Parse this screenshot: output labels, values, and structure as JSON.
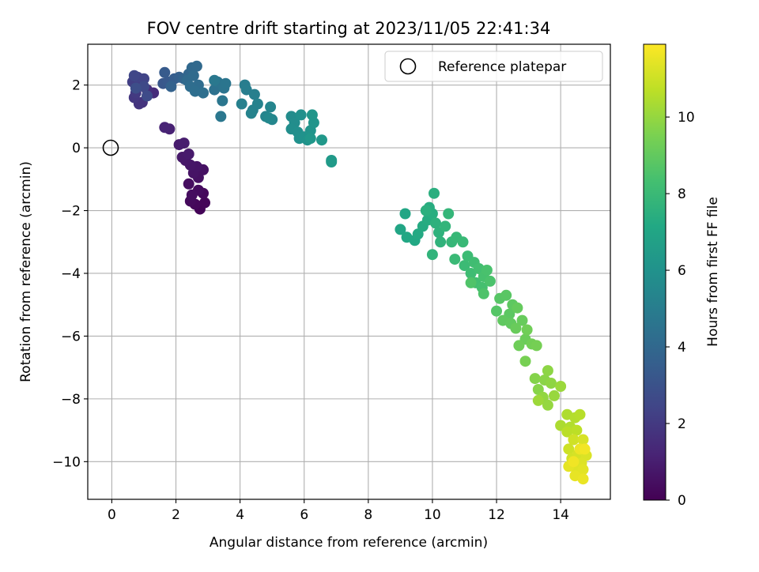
{
  "chart_data": {
    "type": "scatter",
    "title": "FOV centre drift starting at 2023/11/05 22:41:34",
    "xlabel": "Angular distance from reference (arcmin)",
    "ylabel": "Rotation from reference (arcmin)",
    "xlim": [
      -0.75,
      15.55
    ],
    "ylim": [
      -11.2,
      3.3
    ],
    "xticks": [
      0,
      2,
      4,
      6,
      8,
      10,
      12,
      14
    ],
    "yticks": [
      -10,
      -8,
      -6,
      -4,
      -2,
      0,
      2
    ],
    "xtick_labels": [
      "0",
      "2",
      "4",
      "6",
      "8",
      "10",
      "12",
      "14"
    ],
    "ytick_labels": [
      "−10",
      "−8",
      "−6",
      "−4",
      "−2",
      "0",
      "2"
    ],
    "grid": true,
    "legend": {
      "position": "top-right",
      "entries": [
        {
          "label": "Reference platepar",
          "marker": "open-circle",
          "x": 0,
          "y": 0
        }
      ]
    },
    "colorbar": {
      "label": "Hours from first FF file",
      "colormap": "viridis",
      "range": [
        0,
        11.9
      ],
      "ticks": [
        0,
        2,
        4,
        6,
        8,
        10
      ],
      "tick_labels": [
        "0",
        "2",
        "4",
        "6",
        "8",
        "10"
      ]
    },
    "series": [
      {
        "points": [
          {
            "x": 2.75,
            "y": -1.95,
            "c": 0.1
          },
          {
            "x": 2.9,
            "y": -1.75,
            "c": 0.15
          },
          {
            "x": 2.6,
            "y": -1.8,
            "c": 0.2
          },
          {
            "x": 2.85,
            "y": -1.45,
            "c": 0.25
          },
          {
            "x": 2.45,
            "y": -1.7,
            "c": 0.3
          },
          {
            "x": 2.7,
            "y": -1.35,
            "c": 0.35
          },
          {
            "x": 2.5,
            "y": -1.5,
            "c": 0.4
          },
          {
            "x": 2.4,
            "y": -1.15,
            "c": 0.45
          },
          {
            "x": 2.7,
            "y": -0.95,
            "c": 0.5
          },
          {
            "x": 2.85,
            "y": -0.7,
            "c": 0.55
          },
          {
            "x": 2.55,
            "y": -0.8,
            "c": 0.6
          },
          {
            "x": 2.65,
            "y": -0.6,
            "c": 0.65
          },
          {
            "x": 2.45,
            "y": -0.55,
            "c": 0.7
          },
          {
            "x": 2.3,
            "y": -0.4,
            "c": 0.75
          },
          {
            "x": 2.2,
            "y": -0.3,
            "c": 0.8
          },
          {
            "x": 2.4,
            "y": -0.2,
            "c": 0.85
          },
          {
            "x": 2.1,
            "y": 0.1,
            "c": 0.9
          },
          {
            "x": 2.25,
            "y": 0.15,
            "c": 0.95
          },
          {
            "x": 1.8,
            "y": 0.6,
            "c": 1.1
          },
          {
            "x": 1.65,
            "y": 0.65,
            "c": 1.2
          },
          {
            "x": 1.3,
            "y": 1.75,
            "c": 1.5
          },
          {
            "x": 1.1,
            "y": 1.85,
            "c": 1.6
          },
          {
            "x": 0.95,
            "y": 1.45,
            "c": 1.7
          },
          {
            "x": 0.85,
            "y": 1.4,
            "c": 1.8
          },
          {
            "x": 0.7,
            "y": 1.6,
            "c": 1.9
          },
          {
            "x": 0.75,
            "y": 1.75,
            "c": 2.0
          },
          {
            "x": 0.9,
            "y": 2.0,
            "c": 2.1
          },
          {
            "x": 0.65,
            "y": 2.1,
            "c": 2.2
          },
          {
            "x": 0.8,
            "y": 2.25,
            "c": 2.3
          },
          {
            "x": 1.0,
            "y": 2.2,
            "c": 2.4
          },
          {
            "x": 0.7,
            "y": 2.3,
            "c": 2.5
          },
          {
            "x": 1.0,
            "y": 1.95,
            "c": 2.6
          },
          {
            "x": 1.1,
            "y": 1.65,
            "c": 2.7
          },
          {
            "x": 0.75,
            "y": 1.9,
            "c": 2.8
          },
          {
            "x": 1.6,
            "y": 2.05,
            "c": 3.2
          },
          {
            "x": 1.75,
            "y": 2.1,
            "c": 3.3
          },
          {
            "x": 1.65,
            "y": 2.4,
            "c": 3.4
          },
          {
            "x": 1.95,
            "y": 2.2,
            "c": 3.5
          },
          {
            "x": 2.1,
            "y": 2.25,
            "c": 3.6
          },
          {
            "x": 1.85,
            "y": 1.95,
            "c": 3.7
          },
          {
            "x": 2.25,
            "y": 2.2,
            "c": 3.8
          },
          {
            "x": 2.4,
            "y": 2.35,
            "c": 3.9
          },
          {
            "x": 2.5,
            "y": 2.55,
            "c": 4.0
          },
          {
            "x": 2.65,
            "y": 2.6,
            "c": 4.05
          },
          {
            "x": 2.35,
            "y": 2.15,
            "c": 4.1
          },
          {
            "x": 2.55,
            "y": 2.3,
            "c": 4.15
          },
          {
            "x": 2.7,
            "y": 2.0,
            "c": 4.2
          },
          {
            "x": 2.45,
            "y": 1.95,
            "c": 4.25
          },
          {
            "x": 2.6,
            "y": 1.8,
            "c": 4.3
          },
          {
            "x": 2.85,
            "y": 1.75,
            "c": 4.35
          },
          {
            "x": 3.2,
            "y": 1.85,
            "c": 4.45
          },
          {
            "x": 3.3,
            "y": 2.1,
            "c": 4.5
          },
          {
            "x": 3.5,
            "y": 1.9,
            "c": 4.55
          },
          {
            "x": 3.55,
            "y": 2.05,
            "c": 4.6
          },
          {
            "x": 3.45,
            "y": 1.5,
            "c": 4.65
          },
          {
            "x": 3.4,
            "y": 1.0,
            "c": 4.7
          },
          {
            "x": 3.2,
            "y": 2.15,
            "c": 4.75
          },
          {
            "x": 4.15,
            "y": 2.0,
            "c": 5.0
          },
          {
            "x": 4.2,
            "y": 1.85,
            "c": 5.05
          },
          {
            "x": 4.45,
            "y": 1.7,
            "c": 5.1
          },
          {
            "x": 4.05,
            "y": 1.4,
            "c": 5.15
          },
          {
            "x": 4.4,
            "y": 1.2,
            "c": 5.2
          },
          {
            "x": 4.55,
            "y": 1.4,
            "c": 5.25
          },
          {
            "x": 4.35,
            "y": 1.1,
            "c": 5.3
          },
          {
            "x": 4.8,
            "y": 1.0,
            "c": 5.35
          },
          {
            "x": 4.95,
            "y": 1.3,
            "c": 5.4
          },
          {
            "x": 5.0,
            "y": 0.9,
            "c": 5.45
          },
          {
            "x": 4.9,
            "y": 0.95,
            "c": 5.5
          },
          {
            "x": 5.6,
            "y": 1.0,
            "c": 5.7
          },
          {
            "x": 5.7,
            "y": 0.8,
            "c": 5.75
          },
          {
            "x": 5.6,
            "y": 0.6,
            "c": 5.8
          },
          {
            "x": 5.8,
            "y": 0.5,
            "c": 5.85
          },
          {
            "x": 5.9,
            "y": 1.05,
            "c": 5.9
          },
          {
            "x": 5.85,
            "y": 0.3,
            "c": 5.95
          },
          {
            "x": 6.0,
            "y": 0.35,
            "c": 6.0
          },
          {
            "x": 6.1,
            "y": 0.25,
            "c": 6.05
          },
          {
            "x": 6.2,
            "y": 0.55,
            "c": 6.1
          },
          {
            "x": 6.3,
            "y": 0.8,
            "c": 6.15
          },
          {
            "x": 6.25,
            "y": 1.05,
            "c": 6.2
          },
          {
            "x": 6.2,
            "y": 0.3,
            "c": 6.25
          },
          {
            "x": 6.55,
            "y": 0.25,
            "c": 6.3
          },
          {
            "x": 6.85,
            "y": -0.4,
            "c": 6.35
          },
          {
            "x": 6.85,
            "y": -0.45,
            "c": 6.4
          },
          {
            "x": 9.0,
            "y": -2.6,
            "c": 7.0
          },
          {
            "x": 9.15,
            "y": -2.1,
            "c": 7.05
          },
          {
            "x": 9.2,
            "y": -2.85,
            "c": 7.1
          },
          {
            "x": 9.45,
            "y": -2.95,
            "c": 7.15
          },
          {
            "x": 9.55,
            "y": -2.75,
            "c": 7.2
          },
          {
            "x": 9.7,
            "y": -2.5,
            "c": 7.25
          },
          {
            "x": 9.85,
            "y": -2.3,
            "c": 7.3
          },
          {
            "x": 9.9,
            "y": -1.9,
            "c": 7.35
          },
          {
            "x": 10.0,
            "y": -2.1,
            "c": 7.4
          },
          {
            "x": 10.05,
            "y": -1.45,
            "c": 7.45
          },
          {
            "x": 9.8,
            "y": -2.0,
            "c": 7.5
          },
          {
            "x": 10.1,
            "y": -2.4,
            "c": 7.55
          },
          {
            "x": 10.2,
            "y": -2.7,
            "c": 7.6
          },
          {
            "x": 10.25,
            "y": -3.0,
            "c": 7.65
          },
          {
            "x": 10.0,
            "y": -3.4,
            "c": 7.7
          },
          {
            "x": 10.4,
            "y": -2.5,
            "c": 7.75
          },
          {
            "x": 10.5,
            "y": -2.1,
            "c": 7.8
          },
          {
            "x": 10.6,
            "y": -3.0,
            "c": 7.85
          },
          {
            "x": 10.75,
            "y": -2.85,
            "c": 7.9
          },
          {
            "x": 10.95,
            "y": -3.0,
            "c": 7.95
          },
          {
            "x": 10.7,
            "y": -3.55,
            "c": 8.0
          },
          {
            "x": 11.0,
            "y": -3.75,
            "c": 8.05
          },
          {
            "x": 11.1,
            "y": -3.45,
            "c": 8.1
          },
          {
            "x": 11.2,
            "y": -4.0,
            "c": 8.15
          },
          {
            "x": 11.3,
            "y": -3.65,
            "c": 8.2
          },
          {
            "x": 11.35,
            "y": -4.3,
            "c": 8.25
          },
          {
            "x": 11.45,
            "y": -3.85,
            "c": 8.3
          },
          {
            "x": 11.55,
            "y": -4.45,
            "c": 8.35
          },
          {
            "x": 11.6,
            "y": -4.1,
            "c": 8.4
          },
          {
            "x": 11.7,
            "y": -3.9,
            "c": 8.45
          },
          {
            "x": 11.8,
            "y": -4.25,
            "c": 8.5
          },
          {
            "x": 11.6,
            "y": -4.65,
            "c": 8.55
          },
          {
            "x": 11.2,
            "y": -4.3,
            "c": 8.6
          },
          {
            "x": 12.0,
            "y": -5.2,
            "c": 8.7
          },
          {
            "x": 12.1,
            "y": -4.8,
            "c": 8.75
          },
          {
            "x": 12.3,
            "y": -4.7,
            "c": 8.8
          },
          {
            "x": 12.4,
            "y": -5.3,
            "c": 8.85
          },
          {
            "x": 12.5,
            "y": -5.0,
            "c": 8.9
          },
          {
            "x": 12.2,
            "y": -5.5,
            "c": 8.95
          },
          {
            "x": 12.45,
            "y": -5.6,
            "c": 9.0
          },
          {
            "x": 12.65,
            "y": -5.1,
            "c": 9.05
          },
          {
            "x": 12.8,
            "y": -5.5,
            "c": 9.1
          },
          {
            "x": 12.6,
            "y": -5.75,
            "c": 9.15
          },
          {
            "x": 12.9,
            "y": -6.1,
            "c": 9.2
          },
          {
            "x": 12.7,
            "y": -6.3,
            "c": 9.25
          },
          {
            "x": 12.95,
            "y": -5.8,
            "c": 9.3
          },
          {
            "x": 13.1,
            "y": -6.25,
            "c": 9.35
          },
          {
            "x": 13.25,
            "y": -6.3,
            "c": 9.4
          },
          {
            "x": 12.9,
            "y": -6.8,
            "c": 9.45
          },
          {
            "x": 13.2,
            "y": -7.35,
            "c": 9.7
          },
          {
            "x": 13.3,
            "y": -7.7,
            "c": 9.75
          },
          {
            "x": 13.5,
            "y": -7.4,
            "c": 9.8
          },
          {
            "x": 13.6,
            "y": -7.1,
            "c": 9.85
          },
          {
            "x": 13.7,
            "y": -7.5,
            "c": 9.9
          },
          {
            "x": 13.45,
            "y": -7.95,
            "c": 9.95
          },
          {
            "x": 13.6,
            "y": -8.2,
            "c": 10.0
          },
          {
            "x": 13.8,
            "y": -7.9,
            "c": 10.05
          },
          {
            "x": 14.0,
            "y": -7.6,
            "c": 10.1
          },
          {
            "x": 13.3,
            "y": -8.05,
            "c": 10.15
          },
          {
            "x": 14.0,
            "y": -8.85,
            "c": 10.4
          },
          {
            "x": 14.2,
            "y": -8.5,
            "c": 10.45
          },
          {
            "x": 14.3,
            "y": -8.9,
            "c": 10.5
          },
          {
            "x": 14.45,
            "y": -8.6,
            "c": 10.55
          },
          {
            "x": 14.6,
            "y": -8.5,
            "c": 10.6
          },
          {
            "x": 14.2,
            "y": -9.05,
            "c": 10.65
          },
          {
            "x": 14.5,
            "y": -9.0,
            "c": 10.7
          },
          {
            "x": 14.25,
            "y": -9.6,
            "c": 11.0
          },
          {
            "x": 14.4,
            "y": -9.3,
            "c": 11.05
          },
          {
            "x": 14.35,
            "y": -9.9,
            "c": 11.1
          },
          {
            "x": 14.55,
            "y": -9.75,
            "c": 11.15
          },
          {
            "x": 14.7,
            "y": -9.3,
            "c": 11.2
          },
          {
            "x": 14.8,
            "y": -9.8,
            "c": 11.25
          },
          {
            "x": 14.65,
            "y": -10.05,
            "c": 11.3
          },
          {
            "x": 14.5,
            "y": -10.3,
            "c": 11.35
          },
          {
            "x": 14.7,
            "y": -10.25,
            "c": 11.4
          },
          {
            "x": 14.25,
            "y": -10.15,
            "c": 11.45
          },
          {
            "x": 14.45,
            "y": -10.45,
            "c": 11.5
          },
          {
            "x": 14.7,
            "y": -10.55,
            "c": 11.55
          },
          {
            "x": 14.6,
            "y": -9.6,
            "c": 11.6
          },
          {
            "x": 14.4,
            "y": -10.0,
            "c": 11.65
          },
          {
            "x": 14.75,
            "y": -9.6,
            "c": 11.7
          }
        ]
      }
    ]
  }
}
